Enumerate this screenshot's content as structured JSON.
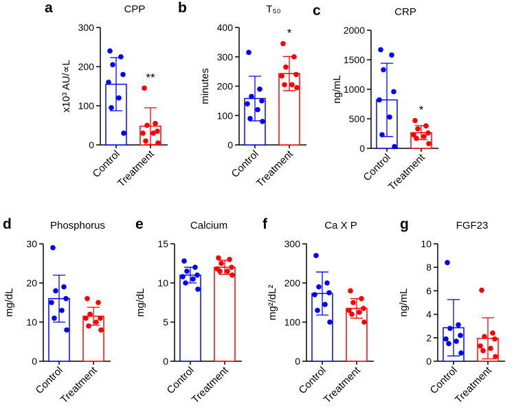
{
  "figure": {
    "colors": {
      "control": "#0000FF",
      "treatment": "#FF0000",
      "axis": "#000000"
    },
    "categories": [
      "Control",
      "Treatment"
    ]
  },
  "chart_data": [
    {
      "type": "bar",
      "id": "a",
      "panel_letter": "a",
      "title": "CPP",
      "ylabel": "x10³ AU/∝L",
      "ylim": [
        0,
        300
      ],
      "yticks": [
        0,
        100,
        200,
        300
      ],
      "categories": [
        "Control",
        "Treatment"
      ],
      "series": [
        {
          "name": "Control",
          "mean": 155,
          "sd": 68,
          "points": [
            240,
            225,
            205,
            180,
            160,
            120,
            95,
            30
          ]
        },
        {
          "name": "Treatment",
          "mean": 48,
          "sd": 47,
          "points": [
            145,
            55,
            50,
            35,
            30,
            30,
            10,
            5
          ]
        }
      ],
      "significance": [
        "",
        "**"
      ]
    },
    {
      "type": "bar",
      "id": "b",
      "panel_letter": "b",
      "title": "T₅₀",
      "ylabel": "minutes",
      "ylim": [
        0,
        400
      ],
      "yticks": [
        0,
        100,
        200,
        300,
        400
      ],
      "categories": [
        "Control",
        "Treatment"
      ],
      "series": [
        {
          "name": "Control",
          "mean": 158,
          "sd": 76,
          "points": [
            315,
            190,
            165,
            150,
            140,
            120,
            90,
            80
          ]
        },
        {
          "name": "Treatment",
          "mean": 243,
          "sd": 58,
          "points": [
            345,
            300,
            265,
            240,
            235,
            205,
            205,
            195
          ]
        }
      ],
      "significance": [
        "",
        "*"
      ]
    },
    {
      "type": "bar",
      "id": "c",
      "panel_letter": "c",
      "title": "CRP",
      "ylabel": "ng/mL",
      "ylim": [
        0,
        2000
      ],
      "yticks": [
        0,
        500,
        1000,
        1500,
        2000
      ],
      "categories": [
        "Control",
        "Treatment"
      ],
      "series": [
        {
          "name": "Control",
          "mean": 820,
          "sd": 620,
          "points": [
            1670,
            1580,
            1330,
            960,
            820,
            530,
            230,
            30
          ]
        },
        {
          "name": "Treatment",
          "mean": 265,
          "sd": 120,
          "points": [
            470,
            380,
            330,
            260,
            230,
            200,
            170,
            80
          ]
        }
      ],
      "significance": [
        "",
        "*"
      ]
    },
    {
      "type": "bar",
      "id": "d",
      "panel_letter": "d",
      "title": "Phosphorus",
      "ylabel": "mg/dL",
      "ylim": [
        0,
        30
      ],
      "yticks": [
        0,
        10,
        20,
        30
      ],
      "categories": [
        "Control",
        "Treatment"
      ],
      "series": [
        {
          "name": "Control",
          "mean": 16,
          "sd": 6,
          "points": [
            29,
            19,
            18,
            16,
            15,
            13,
            11,
            8
          ]
        },
        {
          "name": "Treatment",
          "mean": 11.5,
          "sd": 2.3,
          "points": [
            16,
            15,
            12,
            11,
            11,
            10,
            9,
            8
          ]
        }
      ],
      "significance": [
        "",
        ""
      ]
    },
    {
      "type": "bar",
      "id": "e",
      "panel_letter": "e",
      "title": "Calcium",
      "ylabel": "mg/dL",
      "ylim": [
        0,
        15
      ],
      "yticks": [
        0,
        5,
        10,
        15
      ],
      "categories": [
        "Control",
        "Treatment"
      ],
      "series": [
        {
          "name": "Control",
          "mean": 11,
          "sd": 1,
          "points": [
            12.8,
            12,
            11.5,
            11,
            10.8,
            10.5,
            10,
            9.2
          ]
        },
        {
          "name": "Treatment",
          "mean": 12,
          "sd": 0.9,
          "points": [
            13.2,
            13,
            12.5,
            12,
            11.8,
            11.5,
            11.5,
            11
          ]
        }
      ],
      "significance": [
        "",
        ""
      ]
    },
    {
      "type": "bar",
      "id": "f",
      "panel_letter": "f",
      "title": "Ca X P",
      "ylabel": "mg²/dL²",
      "ylim": [
        0,
        300
      ],
      "yticks": [
        0,
        100,
        200,
        300
      ],
      "categories": [
        "Control",
        "Treatment"
      ],
      "series": [
        {
          "name": "Control",
          "mean": 173,
          "sd": 55,
          "points": [
            270,
            200,
            190,
            175,
            170,
            145,
            130,
            100
          ]
        },
        {
          "name": "Treatment",
          "mean": 135,
          "sd": 25,
          "points": [
            180,
            160,
            150,
            135,
            130,
            125,
            120,
            100
          ]
        }
      ],
      "significance": [
        "",
        ""
      ]
    },
    {
      "type": "bar",
      "id": "g",
      "panel_letter": "g",
      "title": "FGF23",
      "ylabel": "ng/mL",
      "ylim": [
        0,
        10
      ],
      "yticks": [
        0,
        2,
        4,
        6,
        8,
        10
      ],
      "categories": [
        "Control",
        "Treatment"
      ],
      "series": [
        {
          "name": "Control",
          "mean": 2.85,
          "sd": 2.4,
          "points": [
            8.4,
            3.1,
            2.8,
            2.2,
            1.9,
            1.7,
            1.5,
            0.7
          ]
        },
        {
          "name": "Treatment",
          "mean": 1.95,
          "sd": 1.75,
          "points": [
            6.05,
            2.4,
            2.1,
            1.9,
            1.3,
            1.1,
            0.9,
            0.4
          ]
        }
      ],
      "significance": [
        "",
        ""
      ]
    }
  ]
}
